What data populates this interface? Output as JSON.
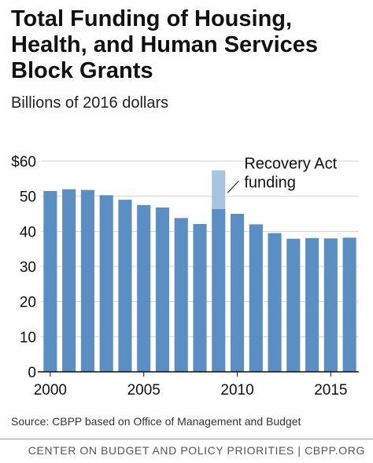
{
  "title": "Total Funding of Housing, Health, and Human Services Block Grants",
  "subtitle": "Billions of 2016 dollars",
  "source": "Source: CBPP based on Office of Management and Budget",
  "footer": "CENTER ON BUDGET AND POLICY PRIORITIES | CBPP.ORG",
  "colors": {
    "bar": "#5b8ec2",
    "recovery": "#a7c4e0",
    "grid": "#d2d2d2",
    "axis": "#111111"
  },
  "chart_data": {
    "type": "bar",
    "title": "Total Funding of Housing, Health, and Human Services Block Grants",
    "subtitle": "Billions of 2016 dollars",
    "categories": [
      2000,
      2001,
      2002,
      2003,
      2004,
      2005,
      2006,
      2007,
      2008,
      2009,
      2010,
      2011,
      2012,
      2013,
      2014,
      2015,
      2016
    ],
    "series": [
      {
        "values": [
          51.5,
          52,
          51.8,
          50.3,
          49,
          47.5,
          46.8,
          43.8,
          42.1,
          46.4,
          45,
          42,
          39.5,
          37.9,
          38.1,
          38,
          38.2
        ]
      },
      {
        "name": "Recovery Act funding",
        "values": [
          0,
          0,
          0,
          0,
          0,
          0,
          0,
          0,
          0,
          11,
          0,
          0,
          0,
          0,
          0,
          0,
          0
        ]
      }
    ],
    "stacked": true,
    "ylim": [
      0,
      60
    ],
    "yticks": [
      0,
      10,
      20,
      30,
      40,
      50,
      60
    ],
    "ytick_labels": [
      "0",
      "10",
      "20",
      "30",
      "40",
      "50",
      "$60"
    ],
    "xtick_labels": [
      "2000",
      "2005",
      "2010",
      "2015"
    ],
    "annotation": [
      "Recovery Act",
      "funding"
    ],
    "grid": true
  }
}
